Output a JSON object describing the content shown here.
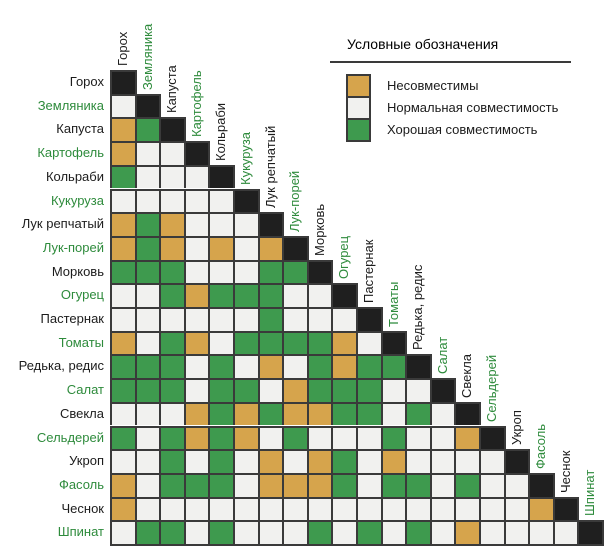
{
  "legend": {
    "title": "Условные обозначения",
    "items": [
      {
        "key": "B",
        "label": "Несовместимы"
      },
      {
        "key": "N",
        "label": "Нормальная совместимость"
      },
      {
        "key": "G",
        "label": "Хорошая совместимость"
      }
    ]
  },
  "colors": {
    "B": "#d6a44c",
    "N": "#f1f1ef",
    "G": "#3e9a4e",
    "diagonal": "#1f1f1f",
    "grid_line": "#3a3a3a",
    "label_green": "#2e8b3c",
    "label_black": "#1c1c1c"
  },
  "chart_data": {
    "type": "heatmap",
    "layout": "lower-triangle compatibility matrix, black diagonal, rotated column headers",
    "categories": [
      "Горох",
      "Земляника",
      "Капуста",
      "Картофель",
      "Кольраби",
      "Кукуруза",
      "Лук репчатый",
      "Лук-порей",
      "Морковь",
      "Огурец",
      "Пастернак",
      "Томаты",
      "Редька, редис",
      "Салат",
      "Свекла",
      "Сельдерей",
      "Укроп",
      "Фасоль",
      "Чеснок",
      "Шпинат"
    ],
    "label_colors": [
      "black",
      "green",
      "black",
      "green",
      "black",
      "green",
      "black",
      "green",
      "black",
      "green",
      "black",
      "green",
      "black",
      "green",
      "black",
      "green",
      "black",
      "green",
      "black",
      "green"
    ],
    "values_encoding": {
      "B": "Несовместимы",
      "N": "Нормальная совместимость",
      "G": "Хорошая совместимость"
    },
    "rows": [
      "",
      "N",
      "BG",
      "BNN",
      "GNNN",
      "NNNNN",
      "BGBNNN",
      "BGBNBNB",
      "GGGNNNGG",
      "NNGBGGGNN",
      "NNNNNNGNNN",
      "BNGBNGGGGBN",
      "GGGNGNBNGBGG",
      "GGGNGGNBGGGNN",
      "NNNBGBGBBGGNGN",
      "GNGBGBNGNNNGNNB",
      "NNGNGNBNBGNBNNNN",
      "BNGGGNBBBGNGGNGNN",
      "BNNNNNNNNNNNNNNNNB",
      "NGGNGNNNGNGNGNBNNNN"
    ]
  }
}
